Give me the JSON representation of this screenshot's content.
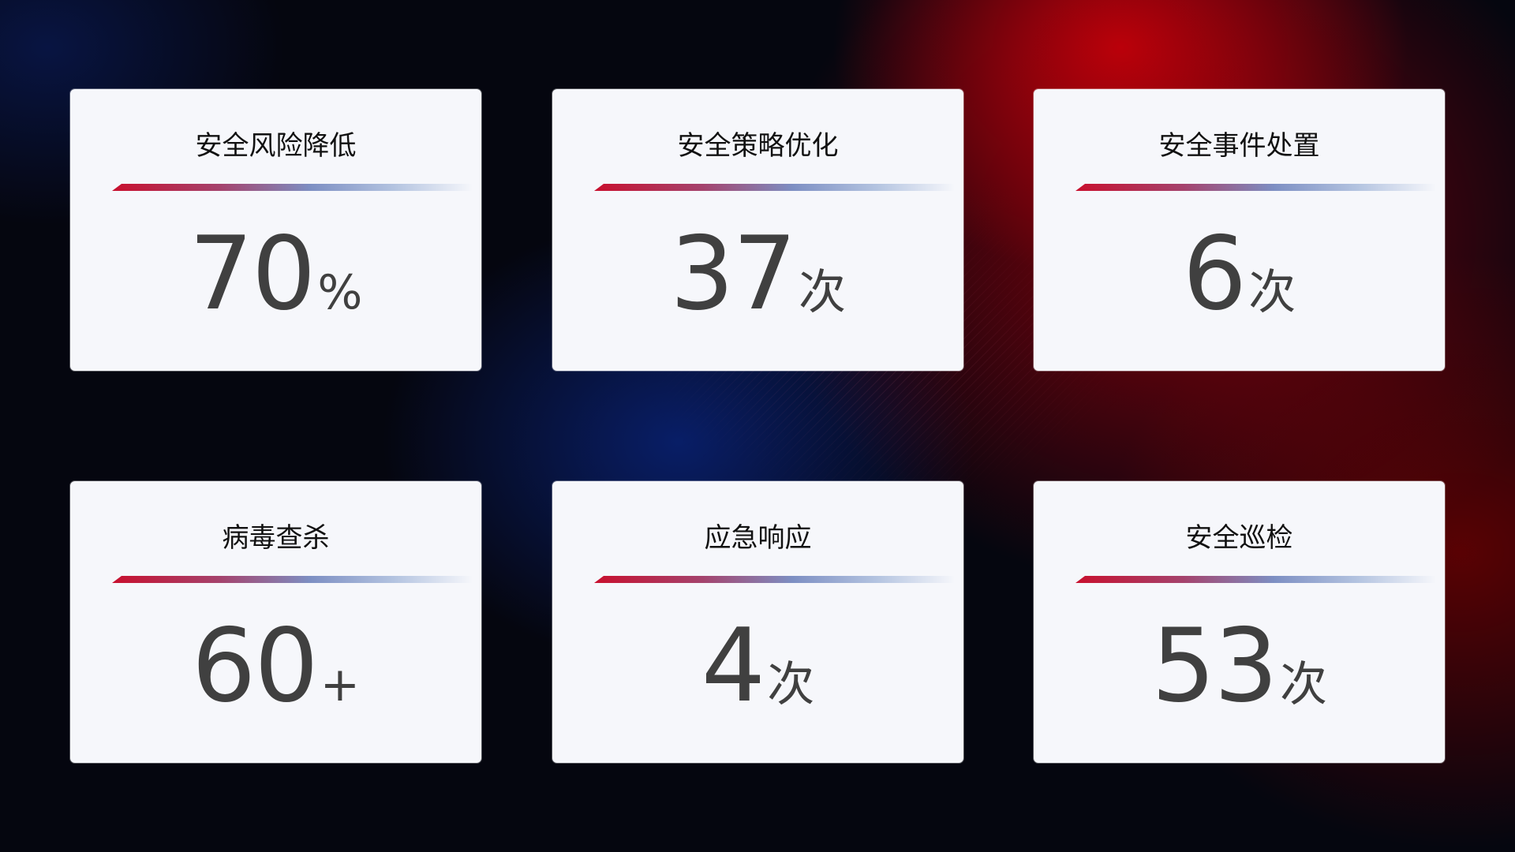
{
  "cards": [
    {
      "title": "安全风险降低",
      "value": "70",
      "unit": "%"
    },
    {
      "title": "安全策略优化",
      "value": "37",
      "unit": "次"
    },
    {
      "title": "安全事件处置",
      "value": "6",
      "unit": "次"
    },
    {
      "title": "病毒查杀",
      "value": "60",
      "unit": "+"
    },
    {
      "title": "应急响应",
      "value": "4",
      "unit": "次"
    },
    {
      "title": "安全巡检",
      "value": "53",
      "unit": "次"
    }
  ],
  "colors": {
    "accent_red": "#c8102e",
    "accent_blue": "#7d8fc3",
    "card_bg": "#f6f7fb",
    "value_text": "#404040"
  }
}
